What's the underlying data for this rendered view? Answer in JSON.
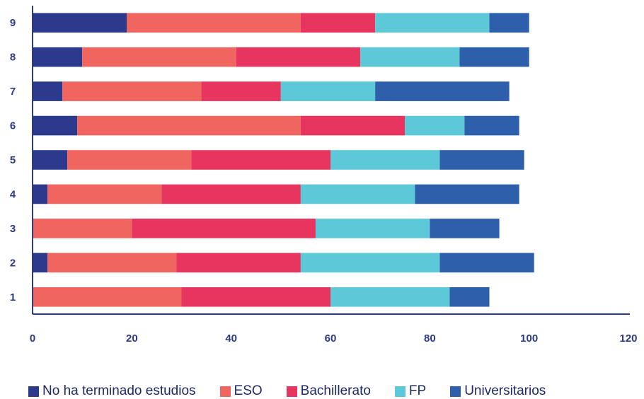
{
  "chart_data": {
    "type": "bar",
    "orientation": "horizontal",
    "stacked": true,
    "categories": [
      "1",
      "2",
      "3",
      "4",
      "5",
      "6",
      "7",
      "8",
      "9"
    ],
    "series": [
      {
        "name": "No ha terminado estudios",
        "color": "#2b3a8c",
        "values": [
          0,
          3,
          0,
          3,
          7,
          9,
          6,
          10,
          19
        ]
      },
      {
        "name": "ESO",
        "color": "#f0655f",
        "values": [
          30,
          26,
          20,
          23,
          25,
          45,
          28,
          31,
          35
        ]
      },
      {
        "name": "Bachillerato",
        "color": "#e8355f",
        "values": [
          30,
          25,
          37,
          28,
          28,
          21,
          16,
          25,
          15
        ]
      },
      {
        "name": "FP",
        "color": "#5dc8d8",
        "values": [
          24,
          28,
          23,
          23,
          22,
          12,
          19,
          20,
          23
        ]
      },
      {
        "name": "Universitarios",
        "color": "#2d5fab",
        "values": [
          8,
          19,
          14,
          21,
          17,
          11,
          27,
          14,
          8
        ]
      }
    ],
    "xticks": [
      "0",
      "20",
      "40",
      "60",
      "80",
      "100",
      "120"
    ],
    "xlim": [
      0,
      120
    ],
    "grid": false,
    "legend_position": "bottom"
  }
}
